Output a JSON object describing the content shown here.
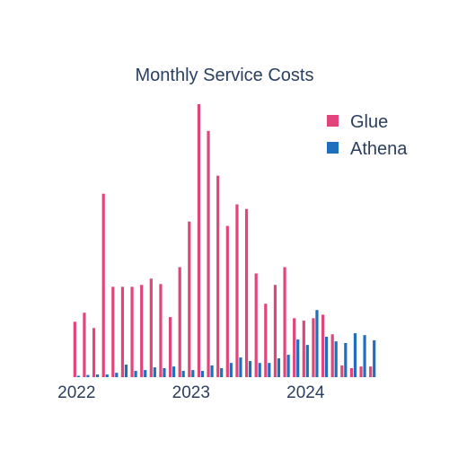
{
  "chart_data": {
    "type": "bar",
    "title": "Monthly Service Costs",
    "xlabel": "",
    "ylabel": "",
    "x_ticks": [
      "2022",
      "2023",
      "2024"
    ],
    "ylim": [
      0,
      100
    ],
    "grid": false,
    "legend_position": "top-right",
    "categories": [
      "2022-01",
      "2022-02",
      "2022-03",
      "2022-04",
      "2022-05",
      "2022-06",
      "2022-07",
      "2022-08",
      "2022-09",
      "2022-10",
      "2022-11",
      "2022-12",
      "2023-01",
      "2023-02",
      "2023-03",
      "2023-04",
      "2023-05",
      "2023-06",
      "2023-07",
      "2023-08",
      "2023-09",
      "2023-10",
      "2023-11",
      "2023-12",
      "2024-01",
      "2024-02",
      "2024-03",
      "2024-04",
      "2024-05",
      "2024-06",
      "2024-07",
      "2024-08"
    ],
    "series": [
      {
        "name": "Glue",
        "color": "#e0457b",
        "values": [
          20.3,
          23.6,
          18.0,
          67.2,
          33.1,
          33.1,
          33.1,
          33.8,
          36.1,
          34.1,
          22.0,
          40.3,
          57.0,
          100.0,
          90.2,
          73.8,
          55.4,
          63.3,
          61.6,
          38.0,
          26.9,
          33.8,
          40.3,
          21.6,
          20.7,
          21.6,
          22.9,
          15.7,
          4.3,
          3.3,
          3.9,
          3.9
        ]
      },
      {
        "name": "Athena",
        "color": "#1f6fbf",
        "values": [
          0.5,
          0.8,
          1.0,
          1.0,
          1.6,
          4.6,
          2.3,
          2.6,
          3.6,
          3.3,
          3.9,
          2.3,
          2.6,
          2.3,
          4.3,
          3.3,
          5.2,
          7.2,
          5.9,
          5.2,
          5.2,
          6.9,
          8.2,
          13.8,
          11.8,
          24.6,
          14.8,
          13.1,
          12.5,
          16.1,
          15.4,
          13.5
        ]
      }
    ]
  }
}
